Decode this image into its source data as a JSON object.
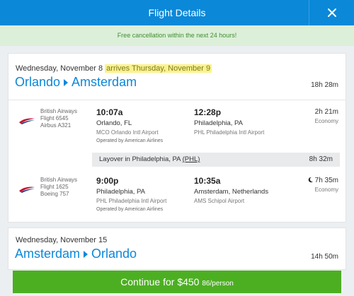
{
  "header": {
    "title": "Flight Details",
    "close_icon": "close-icon"
  },
  "notice": "Free cancellation within the next 24 hours!",
  "outbound": {
    "date": "Wednesday, November 8",
    "arrives": "arrives Thursday, November 9",
    "from": "Orlando",
    "to": "Amsterdam",
    "duration": "18h 28m",
    "segments": [
      {
        "airline": "British Airways",
        "flight": "Flight 6545",
        "aircraft": "Airbus A321",
        "dep_time": "10:07a",
        "dep_city": "Orlando, FL",
        "dep_airport": "MCO Orlando Intl Airport",
        "arr_time": "12:28p",
        "arr_city": "Philadelphia, PA",
        "arr_airport": "PHL Philadelphia Intl Airport",
        "operated": "Operated by American Airlines",
        "duration": "2h 21m",
        "cabin": "Economy"
      },
      {
        "airline": "British Airways",
        "flight": "Flight 1625",
        "aircraft": "Boeing 757",
        "dep_time": "9:00p",
        "dep_city": "Philadelphia, PA",
        "dep_airport": "PHL Philadelphia Intl Airport",
        "arr_time": "10:35a",
        "arr_city": "Amsterdam, Netherlands",
        "arr_airport": "AMS Schipol Airport",
        "operated": "Operated by American Airlines",
        "duration": "7h 35m",
        "cabin": "Economy",
        "overnight_icon": "moon-icon"
      }
    ],
    "layover": {
      "text": "Layover in Philadelphia, PA",
      "code": "(PHL)",
      "duration": "8h 32m"
    }
  },
  "return": {
    "date": "Wednesday, November 15",
    "from": "Amsterdam",
    "to": "Orlando",
    "duration": "14h 50m"
  },
  "cta": {
    "label": "Continue for $450",
    "per_person": "86/person"
  },
  "colors": {
    "brand_blue": "#0b88d8",
    "cta_green": "#4caf22",
    "notice_bg": "#dcefd9",
    "highlight": "#fbf38a"
  }
}
